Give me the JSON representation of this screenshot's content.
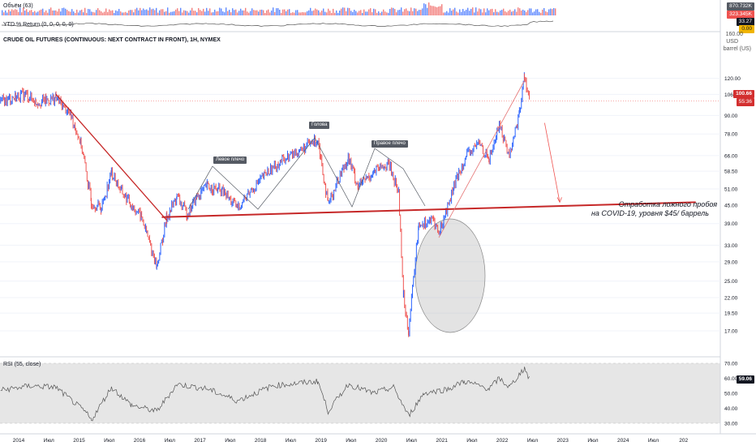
{
  "volume_pane": {
    "title": "Объём (63)",
    "values": [
      "870.732K",
      "323.345K"
    ]
  },
  "ytd_pane": {
    "title": "YTD % Return (0, 0, 0, 0, 0)",
    "values": [
      "33.27",
      "0.00"
    ]
  },
  "price_pane": {
    "title": "CRUDE OIL FUTURES (CONTINUOUS: NEXT CONTRACT IN FRONT), 1H, NYMEX",
    "unit_top": "USD",
    "unit_bottom": "barrel (US)",
    "axis_top_label": "160.00",
    "current_price": "100.66",
    "countdown": "55:36"
  },
  "rsi_pane": {
    "title": "RSI (55, close)",
    "current": "59.06"
  },
  "annotations": {
    "left_shoulder": "Левое плечо",
    "head": "Голова",
    "right_shoulder": "Правое плечо",
    "note_line1": "Отработка ложного пробоя",
    "note_line2": "на COVID-19, уровня $45/ баррель"
  },
  "colors": {
    "up": "#2962ff",
    "down": "#ef5350",
    "trendline": "#c62828",
    "price_badge": "#d32f2f",
    "rsi_badge": "#131722"
  },
  "chart_data": {
    "type": "line",
    "title": "CRUDE OIL FUTURES (CONTINUOUS: NEXT CONTRACT IN FRONT), 1H, NYMEX",
    "y_scale": "log",
    "ylim": [
      15.0,
      140.0
    ],
    "y_ticks": [
      120.0,
      106.0,
      90.0,
      78.0,
      66.0,
      58.5,
      51.0,
      45.0,
      39.0,
      33.0,
      29.0,
      25.0,
      22.0,
      19.5,
      17.0
    ],
    "x_ticks": [
      "8",
      "2014",
      "Июл",
      "2015",
      "Июл",
      "2016",
      "Июл",
      "2017",
      "Июл",
      "2018",
      "Июл",
      "2019",
      "Июл",
      "2020",
      "Июл",
      "2021",
      "Июл",
      "2022",
      "Июл",
      "2023",
      "Июл",
      "2024",
      "Июл",
      "202"
    ],
    "series": [
      {
        "values": [
          {
            "x": "2013-07",
            "y": 100
          },
          {
            "x": "2013-10",
            "y": 104
          },
          {
            "x": "2013-12",
            "y": 106
          },
          {
            "x": "2014-02",
            "y": 100
          },
          {
            "x": "2014-04",
            "y": 101
          },
          {
            "x": "2014-06",
            "y": 103
          },
          {
            "x": "2014-09",
            "y": 90
          },
          {
            "x": "2014-11",
            "y": 72
          },
          {
            "x": "2015-01",
            "y": 46
          },
          {
            "x": "2015-03",
            "y": 44
          },
          {
            "x": "2015-05",
            "y": 58
          },
          {
            "x": "2015-07",
            "y": 50
          },
          {
            "x": "2015-09",
            "y": 45
          },
          {
            "x": "2015-11",
            "y": 41
          },
          {
            "x": "2015-12",
            "y": 36
          },
          {
            "x": "2016-02",
            "y": 28
          },
          {
            "x": "2016-04",
            "y": 41
          },
          {
            "x": "2016-06",
            "y": 48
          },
          {
            "x": "2016-08",
            "y": 42
          },
          {
            "x": "2016-10",
            "y": 48
          },
          {
            "x": "2016-12",
            "y": 52
          },
          {
            "x": "2017-03",
            "y": 50
          },
          {
            "x": "2017-06",
            "y": 44
          },
          {
            "x": "2017-09",
            "y": 51
          },
          {
            "x": "2017-12",
            "y": 58
          },
          {
            "x": "2018-03",
            "y": 64
          },
          {
            "x": "2018-06",
            "y": 68
          },
          {
            "x": "2018-10",
            "y": 75
          },
          {
            "x": "2018-12",
            "y": 45
          },
          {
            "x": "2019-02",
            "y": 55
          },
          {
            "x": "2019-04",
            "y": 65
          },
          {
            "x": "2019-06",
            "y": 52
          },
          {
            "x": "2019-09",
            "y": 58
          },
          {
            "x": "2019-12",
            "y": 62
          },
          {
            "x": "2020-02",
            "y": 50
          },
          {
            "x": "2020-03",
            "y": 22
          },
          {
            "x": "2020-04",
            "y": 17
          },
          {
            "x": "2020-06",
            "y": 39
          },
          {
            "x": "2020-09",
            "y": 40
          },
          {
            "x": "2020-10",
            "y": 36
          },
          {
            "x": "2021-01",
            "y": 52
          },
          {
            "x": "2021-03",
            "y": 64
          },
          {
            "x": "2021-06",
            "y": 73
          },
          {
            "x": "2021-08",
            "y": 64
          },
          {
            "x": "2021-10",
            "y": 84
          },
          {
            "x": "2021-12",
            "y": 66
          },
          {
            "x": "2022-02",
            "y": 92
          },
          {
            "x": "2022-03",
            "y": 123
          },
          {
            "x": "2022-04",
            "y": 100.66
          }
        ]
      }
    ],
    "rsi": {
      "ylim": [
        30,
        70
      ],
      "y_ticks": [
        70.0,
        60.0,
        50.0,
        40.0,
        30.0
      ],
      "values": [
        {
          "x": "2013-07",
          "y": 52
        },
        {
          "x": "2014-01",
          "y": 55
        },
        {
          "x": "2014-06",
          "y": 54
        },
        {
          "x": "2014-12",
          "y": 37
        },
        {
          "x": "2015-01",
          "y": 32
        },
        {
          "x": "2015-05",
          "y": 54
        },
        {
          "x": "2015-09",
          "y": 42
        },
        {
          "x": "2016-02",
          "y": 38
        },
        {
          "x": "2016-06",
          "y": 56
        },
        {
          "x": "2016-12",
          "y": 53
        },
        {
          "x": "2017-06",
          "y": 45
        },
        {
          "x": "2018-01",
          "y": 55
        },
        {
          "x": "2018-10",
          "y": 58
        },
        {
          "x": "2018-12",
          "y": 38
        },
        {
          "x": "2019-04",
          "y": 56
        },
        {
          "x": "2019-09",
          "y": 50
        },
        {
          "x": "2020-01",
          "y": 54
        },
        {
          "x": "2020-04",
          "y": 35
        },
        {
          "x": "2020-07",
          "y": 50
        },
        {
          "x": "2020-12",
          "y": 53
        },
        {
          "x": "2021-03",
          "y": 58
        },
        {
          "x": "2021-08",
          "y": 53
        },
        {
          "x": "2021-10",
          "y": 60
        },
        {
          "x": "2021-12",
          "y": 54
        },
        {
          "x": "2022-03",
          "y": 67
        },
        {
          "x": "2022-04",
          "y": 59.06
        }
      ]
    },
    "drawings": {
      "downtrend": [
        {
          "x": "2014-06",
          "y": 106
        },
        {
          "x": "2016-04",
          "y": 40
        }
      ],
      "support_line": [
        {
          "x": "2016-03",
          "y": 41
        },
        {
          "x": "2025-01",
          "y": 46
        }
      ],
      "covid_uptrend": [
        {
          "x": "2020-10",
          "y": 35
        },
        {
          "x": "2022-03",
          "y": 118
        }
      ],
      "projection_arrow": [
        {
          "x": "2022-07",
          "y": 85
        },
        {
          "x": "2022-10",
          "y": 46
        }
      ]
    },
    "grid": true,
    "legend": "none"
  }
}
